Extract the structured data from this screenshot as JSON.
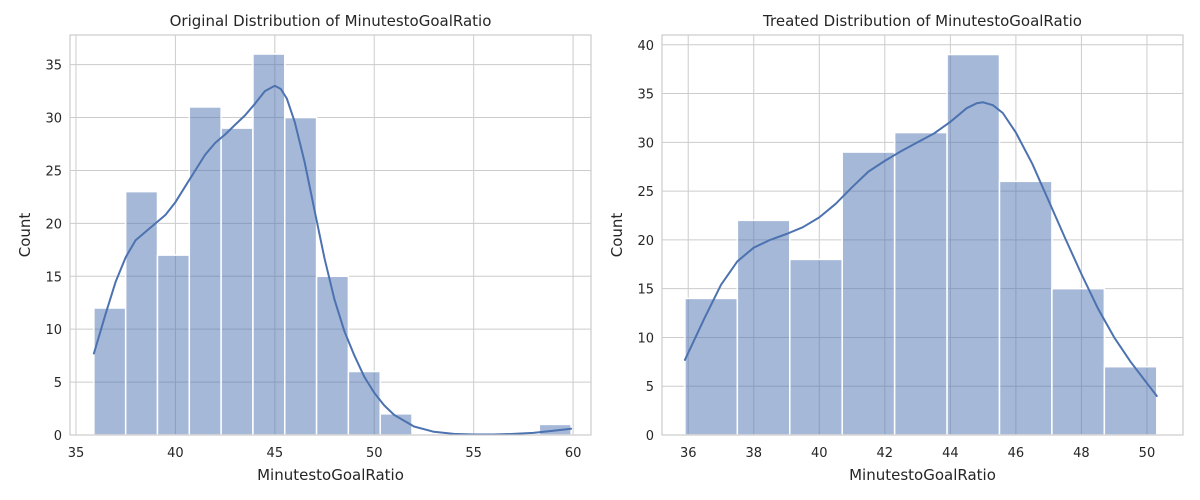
{
  "chart_data": [
    {
      "type": "bar",
      "subtype": "histogram-with-kde",
      "title": "Original Distribution of MinutestoGoalRatio",
      "xlabel": "MinutestoGoalRatio",
      "ylabel": "Count",
      "xlim": [
        34.7,
        60.9
      ],
      "ylim": [
        0,
        37.8
      ],
      "xticks": [
        35,
        40,
        45,
        50,
        55,
        60
      ],
      "yticks": [
        0,
        5,
        10,
        15,
        20,
        25,
        30,
        35
      ],
      "bin_edges": [
        35.9,
        37.5,
        39.1,
        40.7,
        42.3,
        43.9,
        45.5,
        47.1,
        48.7,
        50.3,
        51.9,
        53.5,
        55.1,
        56.7,
        58.3,
        59.9
      ],
      "counts": [
        12,
        23,
        17,
        31,
        29,
        36,
        30,
        15,
        6,
        2,
        0,
        0,
        0,
        0,
        1
      ],
      "kde": {
        "x": [
          35.9,
          36.5,
          37.0,
          37.5,
          38.0,
          38.5,
          39.0,
          39.5,
          40.0,
          40.5,
          41.0,
          41.5,
          42.0,
          42.5,
          43.0,
          43.5,
          44.0,
          44.5,
          45.0,
          45.3,
          45.6,
          46.0,
          46.5,
          47.0,
          47.5,
          48.0,
          48.5,
          49.0,
          49.5,
          50.0,
          50.5,
          51.0,
          52.0,
          53.0,
          54.0,
          55.0,
          56.0,
          57.0,
          58.0,
          59.0,
          59.9
        ],
        "y": [
          7.7,
          11.5,
          14.5,
          16.8,
          18.4,
          19.2,
          20.0,
          20.8,
          22.0,
          23.5,
          25.0,
          26.5,
          27.6,
          28.4,
          29.3,
          30.2,
          31.3,
          32.5,
          33.0,
          32.7,
          31.8,
          29.6,
          25.8,
          21.2,
          16.7,
          12.8,
          9.8,
          7.5,
          5.5,
          4.0,
          2.8,
          1.9,
          0.8,
          0.3,
          0.1,
          0.05,
          0.05,
          0.1,
          0.2,
          0.4,
          0.6
        ]
      }
    },
    {
      "type": "bar",
      "subtype": "histogram-with-kde",
      "title": "Treated Distribution of MinutestoGoalRatio",
      "xlabel": "MinutestoGoalRatio",
      "ylabel": "Count",
      "xlim": [
        35.2,
        51.1
      ],
      "ylim": [
        0,
        41.0
      ],
      "xticks": [
        36,
        38,
        40,
        42,
        44,
        46,
        48,
        50
      ],
      "yticks": [
        0,
        5,
        10,
        15,
        20,
        25,
        30,
        35,
        40
      ],
      "bin_edges": [
        35.9,
        37.5,
        39.1,
        40.7,
        42.3,
        43.9,
        45.5,
        47.1,
        48.7,
        50.3
      ],
      "counts": [
        14,
        22,
        18,
        29,
        31,
        39,
        26,
        15,
        7
      ],
      "kde": {
        "x": [
          35.9,
          36.5,
          37.0,
          37.5,
          38.0,
          38.5,
          39.0,
          39.5,
          40.0,
          40.5,
          41.0,
          41.5,
          42.0,
          42.5,
          43.0,
          43.5,
          44.0,
          44.5,
          44.8,
          45.0,
          45.3,
          45.6,
          46.0,
          46.5,
          47.0,
          47.5,
          48.0,
          48.5,
          49.0,
          49.5,
          50.0,
          50.3
        ],
        "y": [
          7.7,
          12.0,
          15.4,
          17.8,
          19.2,
          20.0,
          20.6,
          21.3,
          22.3,
          23.7,
          25.4,
          27.0,
          28.1,
          29.1,
          30.0,
          30.9,
          32.1,
          33.5,
          34.0,
          34.1,
          33.8,
          33.0,
          31.0,
          27.8,
          24.0,
          20.2,
          16.5,
          13.0,
          10.0,
          7.5,
          5.3,
          4.0
        ]
      }
    }
  ]
}
